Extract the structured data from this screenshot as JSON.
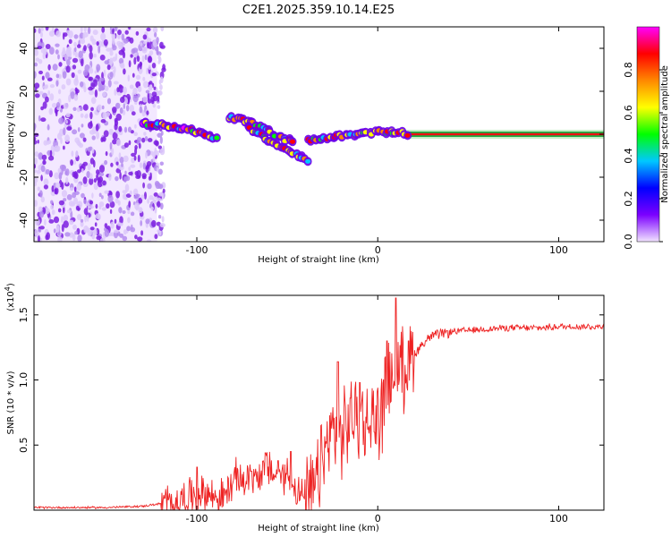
{
  "chart_data": [
    {
      "type": "heatmap",
      "title": "C2E1.2025.359.10.14.E25",
      "xlabel": "Height of straight line (km)",
      "ylabel": "Frequency (Hz)",
      "xlim": [
        -190,
        125
      ],
      "ylim": [
        -50,
        50
      ],
      "xticks": [
        -100,
        0,
        100
      ],
      "yticks": [
        -40,
        -20,
        0,
        20,
        40
      ],
      "colorbar": {
        "label": "Normalized spectral amplitude",
        "range": [
          0,
          1
        ],
        "ticks": [
          "0.0",
          "0.2",
          "0.4",
          "0.6",
          "0.8"
        ],
        "colors": [
          "#f2e4ff",
          "#7b00ff",
          "#0000ff",
          "#00c8ff",
          "#00ff00",
          "#ffff00",
          "#ff8800",
          "#ff0000",
          "#ff00ff"
        ]
      },
      "features": {
        "noise_region_x": [
          -190,
          -122
        ],
        "track_segments": [
          {
            "x": [
              -130,
              -118,
              -105,
              -95,
              -88
            ],
            "y": [
              5,
              4,
              2,
              0,
              -3
            ]
          },
          {
            "x": [
              -82,
              -72,
              -62,
              -52,
              -45
            ],
            "y": [
              8,
              6,
              2,
              -2,
              -4
            ]
          },
          {
            "x": [
              -72,
              -62,
              -52,
              -44,
              -38
            ],
            "y": [
              3,
              -2,
              -6,
              -10,
              -13
            ]
          },
          {
            "x": [
              -38,
              -25,
              -12,
              0,
              10,
              18
            ],
            "y": [
              -3,
              -1,
              0,
              1,
              1,
              0
            ]
          }
        ],
        "steady_line_x": [
          15,
          125
        ],
        "steady_line_y": 0
      }
    },
    {
      "type": "line",
      "xlabel": "Height of straight line (km)",
      "ylabel": "SNR (10 * v/v)",
      "y_multiplier": "(x10",
      "y_multiplier_exp": "4",
      "y_multiplier_close": ")",
      "xlim": [
        -190,
        125
      ],
      "ylim": [
        0,
        1.65
      ],
      "xticks": [
        -100,
        0,
        100
      ],
      "yticks": [
        0.5,
        1.0,
        1.5
      ],
      "ytick_labels": [
        "0.5",
        "1.0",
        "1.5"
      ],
      "color": "#ee2222",
      "series": [
        {
          "name": "SNR",
          "x": [
            -190,
            -150,
            -130,
            -120,
            -112,
            -105,
            -98,
            -92,
            -85,
            -78,
            -72,
            -66,
            -60,
            -55,
            -50,
            -44,
            -40,
            -36,
            -30,
            -25,
            -20,
            -15,
            -10,
            -6,
            -2,
            2,
            6,
            10,
            14,
            20,
            25,
            30,
            35,
            40,
            50,
            60,
            70,
            80,
            90,
            100,
            110,
            125
          ],
          "values": [
            0.02,
            0.02,
            0.03,
            0.05,
            0.06,
            0.1,
            0.14,
            0.11,
            0.1,
            0.25,
            0.22,
            0.28,
            0.32,
            0.24,
            0.28,
            0.14,
            0.08,
            0.12,
            0.4,
            0.62,
            0.55,
            0.72,
            0.72,
            0.65,
            0.7,
            0.75,
            1.0,
            1.05,
            1.08,
            1.2,
            1.28,
            1.34,
            1.35,
            1.37,
            1.38,
            1.39,
            1.4,
            1.4,
            1.4,
            1.41,
            1.41,
            1.41
          ],
          "spikes": [
            [
              -100,
              0.33
            ],
            [
              -70,
              0.3
            ],
            [
              -62,
              0.44
            ],
            [
              -55,
              0.38
            ],
            [
              -48,
              0.45
            ],
            [
              -22,
              1.14
            ],
            [
              -10,
              0.98
            ],
            [
              5,
              1.3
            ],
            [
              10,
              1.63
            ],
            [
              17,
              1.3
            ]
          ]
        }
      ]
    }
  ]
}
